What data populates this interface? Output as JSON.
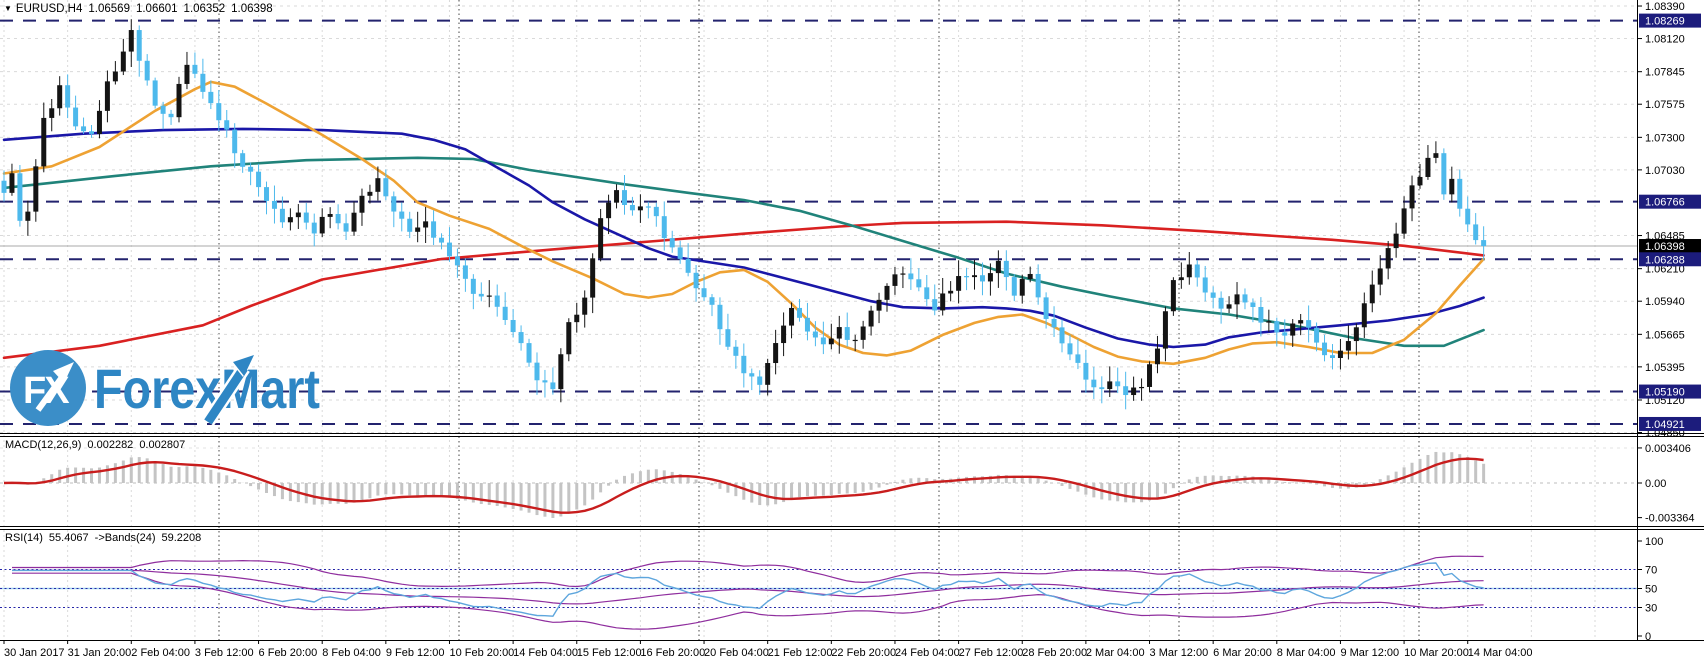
{
  "header": {
    "symbol": "EURUSD,H4",
    "open": "1.06569",
    "high": "1.06601",
    "low": "1.06352",
    "close": "1.06398"
  },
  "watermark": {
    "circle_text": "FX",
    "name": "ForexMart"
  },
  "colors": {
    "background": "#ffffff",
    "grid": "#dadada",
    "week_line": "#454545",
    "bull": "#141414",
    "bear": "#4db9ec",
    "ma_red": "#d92121",
    "ma_orange": "#eea233",
    "ma_navy": "#1a17a8",
    "ma_teal": "#20837a",
    "level_line": "#23236e",
    "current_line": "#aaaaaa",
    "macd_hist": "#c4c4c4",
    "macd_signal": "#c81d1d",
    "rsi_line": "#5ea6dd",
    "rsi_band": "#8f2e9e",
    "rsi_level": "#2626a8",
    "label_box": "#1c1c7c",
    "label_box_current": "#000000",
    "axis_text": "#000000",
    "border": "#000000",
    "logo_blue": "#2e86c4",
    "logo_circle": "#3b8ec8"
  },
  "chart_data": {
    "type": "candlestick",
    "symbol": "EURUSD",
    "timeframe": "H4",
    "bars_total": 187,
    "ohlc_current": {
      "open": 1.06569,
      "high": 1.06601,
      "low": 1.06352,
      "close": 1.06398
    },
    "price_axis_ticks": [
      "1.08390",
      "1.08120",
      "1.07845",
      "1.07575",
      "1.07300",
      "1.07030",
      "1.06485",
      "1.06210",
      "1.05940",
      "1.05665",
      "1.05395",
      "1.05120",
      "1.04850"
    ],
    "boxed_price_labels": [
      {
        "label": "1.08269",
        "value": 1.08269,
        "style": "level"
      },
      {
        "label": "1.06766",
        "value": 1.06766,
        "style": "level"
      },
      {
        "label": "1.06398",
        "value": 1.06398,
        "style": "current"
      },
      {
        "label": "1.06288",
        "value": 1.06288,
        "style": "level"
      },
      {
        "label": "1.05190",
        "value": 1.0519,
        "style": "level"
      },
      {
        "label": "1.04921",
        "value": 1.04921,
        "style": "level"
      }
    ],
    "time_axis_ticks": [
      {
        "bar": 0,
        "label": "30 Jan 2017"
      },
      {
        "bar": 8,
        "label": "31 Jan 20:00"
      },
      {
        "bar": 16,
        "label": "2 Feb 04:00"
      },
      {
        "bar": 24,
        "label": "3 Feb 12:00"
      },
      {
        "bar": 32,
        "label": "6 Feb 20:00"
      },
      {
        "bar": 40,
        "label": "8 Feb 04:00"
      },
      {
        "bar": 48,
        "label": "9 Feb 12:00"
      },
      {
        "bar": 56,
        "label": "10 Feb 20:00"
      },
      {
        "bar": 64,
        "label": "14 Feb 04:00"
      },
      {
        "bar": 72,
        "label": "15 Feb 12:00"
      },
      {
        "bar": 80,
        "label": "16 Feb 20:00"
      },
      {
        "bar": 88,
        "label": "20 Feb 04:00"
      },
      {
        "bar": 96,
        "label": "21 Feb 12:00"
      },
      {
        "bar": 104,
        "label": "22 Feb 20:00"
      },
      {
        "bar": 112,
        "label": "24 Feb 04:00"
      },
      {
        "bar": 120,
        "label": "27 Feb 12:00"
      },
      {
        "bar": 128,
        "label": "28 Feb 20:00"
      },
      {
        "bar": 136,
        "label": "2 Mar 04:00"
      },
      {
        "bar": 144,
        "label": "3 Mar 12:00"
      },
      {
        "bar": 152,
        "label": "6 Mar 20:00"
      },
      {
        "bar": 160,
        "label": "8 Mar 04:00"
      },
      {
        "bar": 168,
        "label": "9 Mar 12:00"
      },
      {
        "bar": 176,
        "label": "10 Mar 20:00"
      },
      {
        "bar": 184,
        "label": "14 Mar 04:00"
      }
    ],
    "price_path_anchors": [
      [
        0,
        1.0682
      ],
      [
        1,
        1.07
      ],
      [
        2,
        1.0662
      ],
      [
        3,
        1.0672
      ],
      [
        5,
        1.0745
      ],
      [
        7,
        1.077
      ],
      [
        9,
        1.0742
      ],
      [
        11,
        1.0729
      ],
      [
        13,
        1.0773
      ],
      [
        15,
        1.08
      ],
      [
        16,
        1.0818
      ],
      [
        17,
        1.0795
      ],
      [
        19,
        1.0758
      ],
      [
        21,
        1.0748
      ],
      [
        23,
        1.0793
      ],
      [
        25,
        1.0765
      ],
      [
        27,
        1.0748
      ],
      [
        29,
        1.072
      ],
      [
        31,
        1.0698
      ],
      [
        33,
        1.0678
      ],
      [
        35,
        1.0662
      ],
      [
        37,
        1.067
      ],
      [
        39,
        1.0652
      ],
      [
        41,
        1.0668
      ],
      [
        43,
        1.065
      ],
      [
        45,
        1.0678
      ],
      [
        47,
        1.0698
      ],
      [
        49,
        1.067
      ],
      [
        51,
        1.0652
      ],
      [
        53,
        1.066
      ],
      [
        55,
        1.064
      ],
      [
        57,
        1.0622
      ],
      [
        59,
        1.0602
      ],
      [
        61,
        1.0596
      ],
      [
        63,
        1.0575
      ],
      [
        65,
        1.056
      ],
      [
        67,
        1.0532
      ],
      [
        69,
        1.0524
      ],
      [
        71,
        1.0575
      ],
      [
        73,
        1.0595
      ],
      [
        75,
        1.066
      ],
      [
        77,
        1.0685
      ],
      [
        79,
        1.0668
      ],
      [
        81,
        1.0676
      ],
      [
        83,
        1.065
      ],
      [
        85,
        1.0633
      ],
      [
        87,
        1.0606
      ],
      [
        89,
        1.0588
      ],
      [
        91,
        1.056
      ],
      [
        93,
        1.0538
      ],
      [
        95,
        1.0522
      ],
      [
        97,
        1.0556
      ],
      [
        99,
        1.0585
      ],
      [
        101,
        1.0568
      ],
      [
        103,
        1.0556
      ],
      [
        105,
        1.057
      ],
      [
        107,
        1.0558
      ],
      [
        109,
        1.0584
      ],
      [
        111,
        1.0608
      ],
      [
        113,
        1.062
      ],
      [
        115,
        1.0603
      ],
      [
        117,
        1.059
      ],
      [
        119,
        1.0606
      ],
      [
        121,
        1.0618
      ],
      [
        123,
        1.061
      ],
      [
        125,
        1.0628
      ],
      [
        127,
        1.0602
      ],
      [
        129,
        1.0616
      ],
      [
        131,
        1.0583
      ],
      [
        133,
        1.0562
      ],
      [
        135,
        1.0542
      ],
      [
        137,
        1.052
      ],
      [
        139,
        1.0528
      ],
      [
        141,
        1.0516
      ],
      [
        143,
        1.0526
      ],
      [
        145,
        1.0558
      ],
      [
        147,
        1.0612
      ],
      [
        149,
        1.0622
      ],
      [
        151,
        1.0598
      ],
      [
        153,
        1.059
      ],
      [
        155,
        1.06
      ],
      [
        157,
        1.0586
      ],
      [
        159,
        1.0574
      ],
      [
        161,
        1.0568
      ],
      [
        163,
        1.058
      ],
      [
        165,
        1.0558
      ],
      [
        167,
        1.0546
      ],
      [
        169,
        1.0558
      ],
      [
        171,
        1.059
      ],
      [
        173,
        1.062
      ],
      [
        175,
        1.0652
      ],
      [
        177,
        1.0692
      ],
      [
        179,
        1.071
      ],
      [
        180,
        1.0718
      ],
      [
        181,
        1.0686
      ],
      [
        182,
        1.0698
      ],
      [
        183,
        1.067
      ],
      [
        184,
        1.0658
      ],
      [
        185,
        1.0648
      ],
      [
        186,
        1.064
      ]
    ],
    "ma_lines": [
      {
        "name": "ma-red-slow",
        "color": "ma_red",
        "points": [
          [
            0,
            1.0547
          ],
          [
            12,
            1.0557
          ],
          [
            25,
            1.0574
          ],
          [
            31,
            1.059
          ],
          [
            40,
            1.0612
          ],
          [
            55,
            1.0629
          ],
          [
            69,
            1.0637
          ],
          [
            82,
            1.0644
          ],
          [
            93,
            1.065
          ],
          [
            105,
            1.0656
          ],
          [
            113,
            1.0659
          ],
          [
            126,
            1.066
          ],
          [
            138,
            1.0657
          ],
          [
            151,
            1.0652
          ],
          [
            167,
            1.0645
          ],
          [
            176,
            1.064
          ],
          [
            186,
            1.0632
          ]
        ]
      },
      {
        "name": "ma-teal",
        "color": "ma_teal",
        "points": [
          [
            0,
            1.0688
          ],
          [
            14,
            1.0698
          ],
          [
            26,
            1.0706
          ],
          [
            38,
            1.0711
          ],
          [
            52,
            1.0713
          ],
          [
            59,
            1.0712
          ],
          [
            66,
            1.0703
          ],
          [
            72,
            1.0697
          ],
          [
            78,
            1.0691
          ],
          [
            86,
            1.0684
          ],
          [
            93,
            1.0678
          ],
          [
            100,
            1.0669
          ],
          [
            107,
            1.0656
          ],
          [
            113,
            1.0644
          ],
          [
            120,
            1.063
          ],
          [
            126,
            1.0617
          ],
          [
            133,
            1.0606
          ],
          [
            139,
            1.0598
          ],
          [
            147,
            1.0588
          ],
          [
            154,
            1.0583
          ],
          [
            162,
            1.0574
          ],
          [
            170,
            1.0563
          ],
          [
            176,
            1.0557
          ],
          [
            181,
            1.0557
          ],
          [
            186,
            1.057
          ]
        ]
      },
      {
        "name": "ma-navy",
        "color": "ma_navy",
        "points": [
          [
            0,
            1.0728
          ],
          [
            10,
            1.0733
          ],
          [
            20,
            1.0736
          ],
          [
            30,
            1.0737
          ],
          [
            40,
            1.0736
          ],
          [
            50,
            1.0733
          ],
          [
            54,
            1.0728
          ],
          [
            58,
            1.072
          ],
          [
            62,
            1.0705
          ],
          [
            66,
            1.069
          ],
          [
            69,
            1.0676
          ],
          [
            73,
            1.0662
          ],
          [
            77,
            1.065
          ],
          [
            81,
            1.0638
          ],
          [
            84,
            1.0631
          ],
          [
            89,
            1.0626
          ],
          [
            93,
            1.0622
          ],
          [
            97,
            1.0615
          ],
          [
            101,
            1.0608
          ],
          [
            105,
            1.0601
          ],
          [
            109,
            1.0594
          ],
          [
            113,
            1.0589
          ],
          [
            118,
            1.0588
          ],
          [
            123,
            1.0589
          ],
          [
            126,
            1.0588
          ],
          [
            129,
            1.0586
          ],
          [
            132,
            1.0582
          ],
          [
            136,
            1.0572
          ],
          [
            140,
            1.0563
          ],
          [
            144,
            1.0558
          ],
          [
            147,
            1.0556
          ],
          [
            151,
            1.0558
          ],
          [
            154,
            1.0564
          ],
          [
            158,
            1.0568
          ],
          [
            163,
            1.0571
          ],
          [
            168,
            1.0574
          ],
          [
            174,
            1.0578
          ],
          [
            179,
            1.0583
          ],
          [
            183,
            1.059
          ],
          [
            186,
            1.0597
          ]
        ]
      },
      {
        "name": "ma-orange",
        "color": "ma_orange",
        "points": [
          [
            0,
            1.07
          ],
          [
            6,
            1.0706
          ],
          [
            12,
            1.0722
          ],
          [
            19,
            1.0752
          ],
          [
            24,
            1.077
          ],
          [
            26,
            1.0776
          ],
          [
            29,
            1.0772
          ],
          [
            33,
            1.0758
          ],
          [
            40,
            1.0732
          ],
          [
            45,
            1.0712
          ],
          [
            49,
            1.0694
          ],
          [
            52,
            1.0676
          ],
          [
            56,
            1.0665
          ],
          [
            61,
            1.0654
          ],
          [
            65,
            1.064
          ],
          [
            69,
            1.0627
          ],
          [
            74,
            1.0613
          ],
          [
            78,
            1.06
          ],
          [
            81,
            1.0597
          ],
          [
            84,
            1.06
          ],
          [
            87,
            1.061
          ],
          [
            90,
            1.0618
          ],
          [
            93,
            1.062
          ],
          [
            96,
            1.061
          ],
          [
            99,
            1.0592
          ],
          [
            102,
            1.0572
          ],
          [
            105,
            1.0558
          ],
          [
            108,
            1.0551
          ],
          [
            111,
            1.0549
          ],
          [
            114,
            1.0553
          ],
          [
            118,
            1.0566
          ],
          [
            122,
            1.0576
          ],
          [
            125,
            1.0581
          ],
          [
            128,
            1.0583
          ],
          [
            131,
            1.0576
          ],
          [
            134,
            1.0566
          ],
          [
            137,
            1.0556
          ],
          [
            140,
            1.0548
          ],
          [
            143,
            1.0544
          ],
          [
            147,
            1.0542
          ],
          [
            151,
            1.0547
          ],
          [
            154,
            1.0554
          ],
          [
            157,
            1.0559
          ],
          [
            160,
            1.056
          ],
          [
            164,
            1.0556
          ],
          [
            168,
            1.0551
          ],
          [
            172,
            1.0551
          ],
          [
            176,
            1.0562
          ],
          [
            180,
            1.0584
          ],
          [
            183,
            1.0607
          ],
          [
            186,
            1.0629
          ]
        ]
      }
    ],
    "macd": {
      "label": "MACD(12,26,9)",
      "value_main": "0.002282",
      "value_signal": "0.002807",
      "fast": 12,
      "slow": 26,
      "signal": 9,
      "axis_ticks": [
        {
          "label": "0.003406",
          "value": 0.003406
        },
        {
          "label": "0.00",
          "value": 0
        },
        {
          "label": "-0.003364",
          "value": -0.003364
        }
      ]
    },
    "rsi": {
      "label": "RSI(14)",
      "value": "55.4067",
      "bands_label": "->Bands(24)",
      "bands_value": "59.2208",
      "period": 14,
      "bands_period": 24,
      "levels": [
        70,
        50,
        30
      ],
      "axis_ticks": [
        {
          "label": "100",
          "value": 100
        },
        {
          "label": "70",
          "value": 70
        },
        {
          "label": "50",
          "value": 50
        },
        {
          "label": "30",
          "value": 30
        },
        {
          "label": "0",
          "value": 0
        }
      ]
    }
  }
}
